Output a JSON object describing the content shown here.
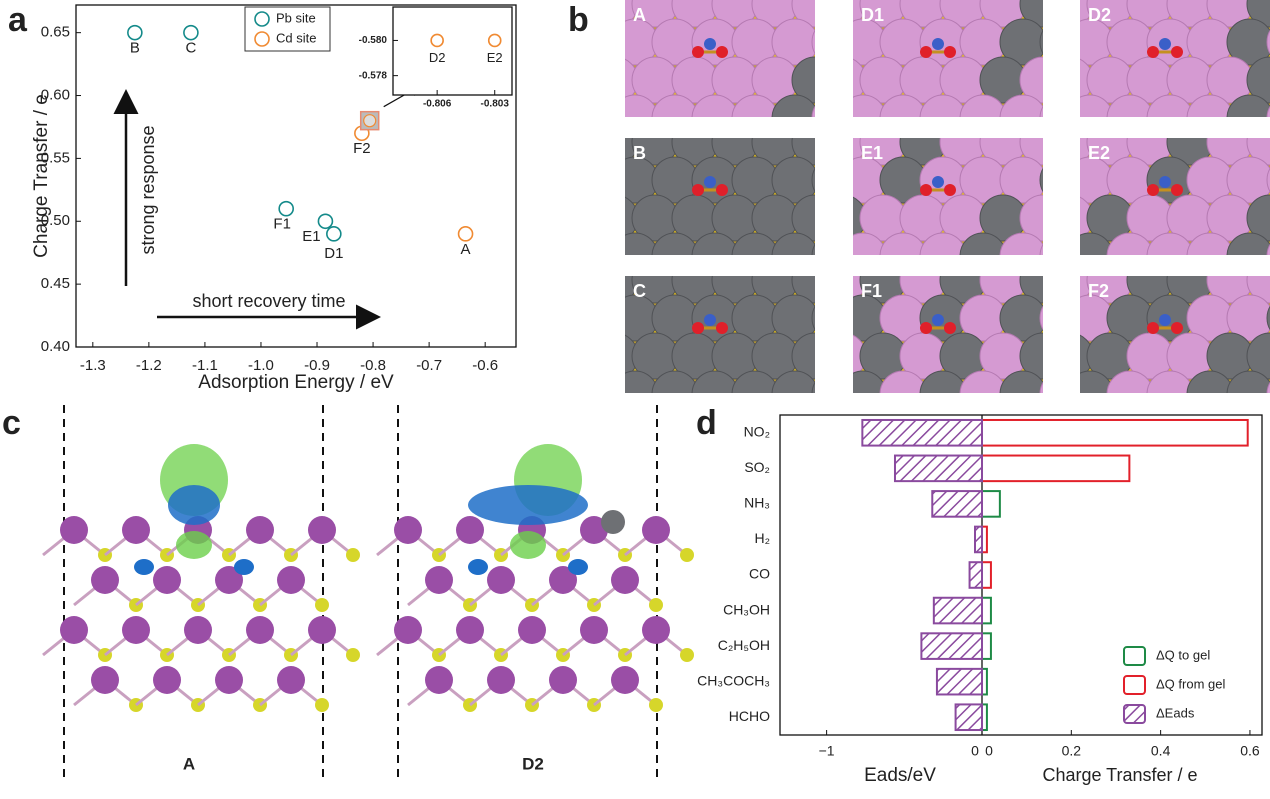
{
  "panel_labels": [
    "a",
    "b",
    "c",
    "d"
  ],
  "chart_data": [
    {
      "type": "scatter",
      "xlabel": "Adsorption Energy / eV",
      "ylabel": "Charge Transfer / e",
      "xlim": [
        -1.33,
        -0.545
      ],
      "ylim": [
        0.4,
        0.672
      ],
      "xticks": [
        -1.3,
        -1.2,
        -1.1,
        {
          "value": -1.0,
          "label": "-1.0"
        },
        -0.9,
        -0.8,
        -0.7,
        -0.6
      ],
      "yticks": [
        {
          "value": 0.4,
          "label": "0.40"
        },
        0.45,
        {
          "value": 0.5,
          "label": "0.50"
        },
        0.55,
        {
          "value": 0.6,
          "label": "0.60"
        },
        0.65
      ],
      "legend": "upper center",
      "series": [
        {
          "name": "Pb site",
          "color": "#148a8a",
          "x": [
            -1.225,
            -1.125,
            -0.955,
            -0.885,
            -0.87
          ],
          "values": [
            0.65,
            0.65,
            0.51,
            0.5,
            0.49
          ],
          "point_labels": [
            "B",
            "C",
            "F1",
            "E1",
            "D1"
          ]
        },
        {
          "name": "Cd site",
          "color": "#f08a32",
          "x": [
            -0.635,
            -0.82,
            -0.806,
            -0.803
          ],
          "values": [
            0.49,
            0.57,
            0.58,
            0.58
          ],
          "point_labels": [
            "A",
            "F2",
            null,
            null
          ]
        }
      ],
      "annotations": [
        "strong response",
        "short recovery time"
      ]
    },
    {
      "type": "scatter",
      "xlim": [
        -0.8083,
        -0.8021
      ],
      "ylim": [
        -0.5819,
        -0.5769
      ],
      "y_inverted": true,
      "xticks": [
        -0.806,
        -0.803
      ],
      "yticks": [
        {
          "value": -0.58,
          "label": "-0.580"
        },
        -0.578
      ],
      "series": [
        {
          "name": null,
          "color": "#f08a32",
          "x": [
            -0.806,
            -0.803
          ],
          "values": [
            -0.58,
            -0.58
          ],
          "point_labels": [
            "D2",
            "E2"
          ]
        }
      ]
    },
    {
      "type": "bar",
      "orientation": "horizontal",
      "categories": [
        "NO₂",
        "SO₂",
        "NH₃",
        "H₂",
        "CO",
        "CH₃OH",
        "C₂H₅OH",
        "CH₃COCH₃",
        "HCHO"
      ],
      "xlabel": "Eads/eV",
      "x2label": "Charge Transfer / e",
      "xlim": [
        -1.3,
        0
      ],
      "x2lim": [
        0,
        0.627
      ],
      "xticks": [
        {
          "value": -1,
          "label": "−1"
        },
        0
      ],
      "x2ticks": [
        0,
        0.2,
        0.4,
        0.6
      ],
      "series": [
        {
          "name": "ΔQ to gel",
          "color": "#1e8a46",
          "axis": "x2",
          "values": [
            null,
            null,
            0.04,
            null,
            null,
            0.02,
            0.02,
            0.011,
            0.011
          ]
        },
        {
          "name": "ΔQ from gel",
          "color": "#e2202a",
          "axis": "x2",
          "values": [
            0.595,
            0.33,
            null,
            0.011,
            0.02,
            null,
            null,
            null,
            null
          ]
        },
        {
          "name": "ΔEads",
          "color": "#8a4a9e",
          "axis": "x",
          "hatch": true,
          "values": [
            -0.77,
            -0.56,
            -0.32,
            -0.045,
            -0.08,
            -0.31,
            -0.39,
            -0.29,
            -0.17
          ]
        }
      ],
      "legend": "lower right"
    }
  ],
  "panel_b": {
    "labels": [
      "A",
      "D1",
      "D2",
      "B",
      "E1",
      "E2",
      "C",
      "F1",
      "F2"
    ]
  },
  "panel_c": {
    "labels": [
      "A",
      "D2"
    ]
  }
}
